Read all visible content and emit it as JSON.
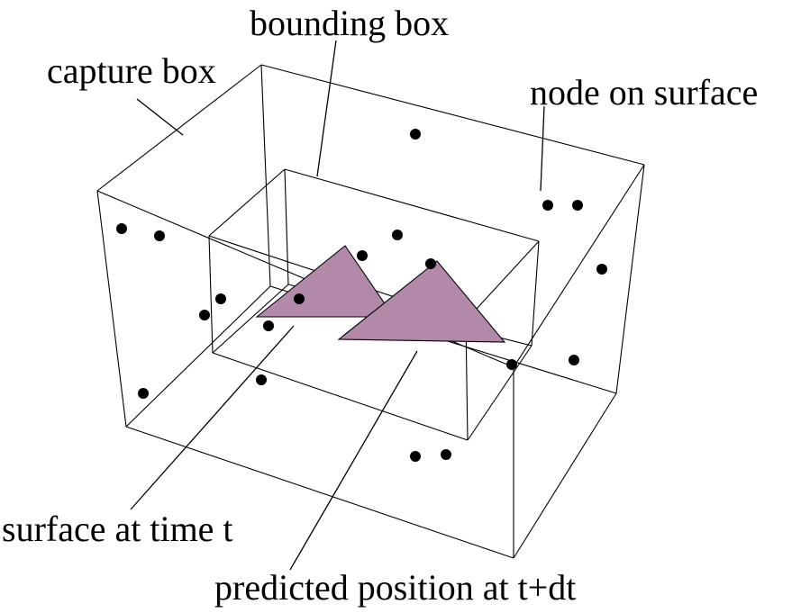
{
  "labels": {
    "bounding_box": "bounding box",
    "capture_box": "capture box",
    "node_on_surface": "node on surface",
    "surface_at_time": "surface at time t",
    "predicted_position": "predicted position at t+dt"
  },
  "colors": {
    "triangle_fill": "#b389aa",
    "line": "#000000",
    "node": "#000000",
    "background": "#ffffff"
  }
}
